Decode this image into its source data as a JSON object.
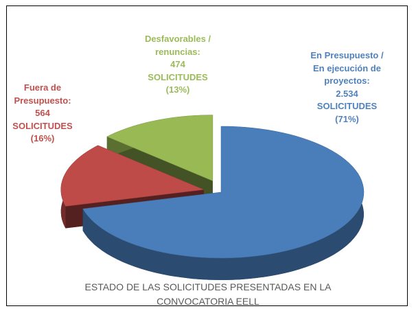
{
  "chart_data": {
    "type": "pie",
    "title": "ESTADO DE LAS SOLICITUDES PRESENTADAS EN LA CONVOCATORIA EELL",
    "categories": [
      "En Presupuesto / En ejecución de proyectos:",
      "Fuera de Presupuesto:",
      "Desfavorables / renuncias:"
    ],
    "values": [
      2534,
      564,
      474
    ],
    "value_labels": [
      "2.534",
      "564",
      "474"
    ],
    "unit": "SOLICITUDES",
    "percentages": [
      71,
      16,
      13
    ],
    "percentage_labels": [
      "(71%)",
      "(16%)",
      "(13%)"
    ],
    "colors": [
      "#4a7ebb",
      "#be4b48",
      "#98b954"
    ]
  }
}
